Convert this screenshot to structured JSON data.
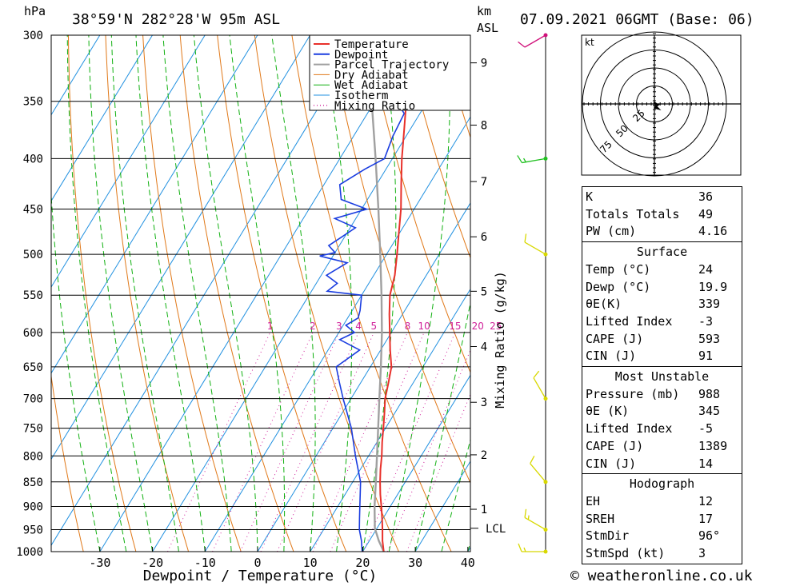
{
  "header": {
    "pressure_unit": "hPa",
    "location": "38°59'N  282°28'W  95m  ASL",
    "km_label": "km",
    "asl_label": "ASL",
    "datetime": "07.09.2021  06GMT  (Base: 06)"
  },
  "credit": "© weatheronline.co.uk",
  "colors": {
    "temperature": "#e8302a",
    "dewpoint": "#1a3de0",
    "parcel": "#a0a0a0",
    "dry_adiabat": "#e07818",
    "wet_adiabat": "#10b010",
    "isotherm": "#2090e0",
    "mixing_ratio": "#d0209a",
    "wind": "#d8d800"
  },
  "legend": [
    "Temperature",
    "Dewpoint",
    "Parcel Trajectory",
    "Dry Adiabat",
    "Wet Adiabat",
    "Isotherm",
    "Mixing Ratio"
  ],
  "hodograph": {
    "unit_label": "kt",
    "ring_labels": [
      "25",
      "50",
      "75"
    ]
  },
  "indices": {
    "top": [
      {
        "label": "K",
        "value": "36"
      },
      {
        "label": "Totals Totals",
        "value": "49"
      },
      {
        "label": "PW (cm)",
        "value": "4.16"
      }
    ],
    "surface": {
      "title": "Surface",
      "rows": [
        {
          "label": "Temp (°C)",
          "value": "24"
        },
        {
          "label": "Dewp (°C)",
          "value": "19.9"
        },
        {
          "label": "θE(K)",
          "value": "339"
        },
        {
          "label": "Lifted Index",
          "value": "-3"
        },
        {
          "label": "CAPE (J)",
          "value": "593"
        },
        {
          "label": "CIN (J)",
          "value": "91"
        }
      ]
    },
    "most_unstable": {
      "title": "Most Unstable",
      "rows": [
        {
          "label": "Pressure (mb)",
          "value": "988"
        },
        {
          "label": "θE (K)",
          "value": "345"
        },
        {
          "label": "Lifted Index",
          "value": "-5"
        },
        {
          "label": "CAPE (J)",
          "value": "1389"
        },
        {
          "label": "CIN (J)",
          "value": "14"
        }
      ]
    },
    "hodograph": {
      "title": "Hodograph",
      "rows": [
        {
          "label": "EH",
          "value": "12"
        },
        {
          "label": "SREH",
          "value": "17"
        },
        {
          "label": "StmDir",
          "value": "96°"
        },
        {
          "label": "StmSpd (kt)",
          "value": "3"
        }
      ]
    }
  },
  "chart_data": {
    "type": "line",
    "title": "38°59'N  282°28'W  95m  ASL",
    "xlabel": "Dewpoint / Temperature (°C)",
    "ylabel": "hPa",
    "y2label": "Mixing Ratio (g/kg)",
    "pressure_ticks": [
      300,
      350,
      400,
      450,
      500,
      550,
      600,
      650,
      700,
      750,
      800,
      850,
      900,
      950,
      1000
    ],
    "temperature_ticks": [
      -30,
      -20,
      -10,
      0,
      10,
      20,
      30,
      40
    ],
    "km_ticks": [
      {
        "km": "1",
        "p": 906
      },
      {
        "km": "2",
        "p": 798
      },
      {
        "km": "3",
        "p": 706
      },
      {
        "km": "4",
        "p": 620
      },
      {
        "km": "5",
        "p": 545
      },
      {
        "km": "6",
        "p": 480
      },
      {
        "km": "7",
        "p": 422
      },
      {
        "km": "8",
        "p": 370
      },
      {
        "km": "9",
        "p": 320
      }
    ],
    "lcl": {
      "label": "LCL",
      "p": 947
    },
    "mixing_ratio_labels": [
      "1",
      "2",
      "3",
      "4",
      "5",
      "8",
      "10",
      "15",
      "20",
      "25"
    ],
    "series": [
      {
        "name": "Temperature",
        "points": [
          [
            1000,
            24.0
          ],
          [
            975,
            22.5
          ],
          [
            950,
            21.2
          ],
          [
            925,
            19.8
          ],
          [
            900,
            18.3
          ],
          [
            875,
            16.7
          ],
          [
            850,
            15.2
          ],
          [
            825,
            13.8
          ],
          [
            800,
            12.5
          ],
          [
            775,
            11.0
          ],
          [
            750,
            9.6
          ],
          [
            725,
            8.1
          ],
          [
            700,
            6.5
          ],
          [
            675,
            5.3
          ],
          [
            650,
            4.0
          ],
          [
            625,
            1.8
          ],
          [
            600,
            -0.3
          ],
          [
            575,
            -2.5
          ],
          [
            550,
            -4.6
          ],
          [
            525,
            -6.0
          ],
          [
            500,
            -8.0
          ],
          [
            475,
            -10.2
          ],
          [
            450,
            -12.5
          ],
          [
            425,
            -15.3
          ],
          [
            400,
            -18.2
          ],
          [
            375,
            -21.0
          ],
          [
            350,
            -24.0
          ],
          [
            325,
            -27.0
          ],
          [
            300,
            -30.5
          ]
        ]
      },
      {
        "name": "Dewpoint",
        "points": [
          [
            1000,
            19.9
          ],
          [
            975,
            18.5
          ],
          [
            950,
            16.8
          ],
          [
            925,
            15.5
          ],
          [
            900,
            14.2
          ],
          [
            850,
            11.5
          ],
          [
            800,
            7.5
          ],
          [
            750,
            3.5
          ],
          [
            700,
            -1.5
          ],
          [
            675,
            -4.0
          ],
          [
            650,
            -6.5
          ],
          [
            625,
            -4.0
          ],
          [
            610,
            -9.0
          ],
          [
            600,
            -7.0
          ],
          [
            590,
            -9.5
          ],
          [
            580,
            -8.0
          ],
          [
            570,
            -8.5
          ],
          [
            550,
            -10.0
          ],
          [
            545,
            -17.0
          ],
          [
            535,
            -16.0
          ],
          [
            525,
            -19.0
          ],
          [
            510,
            -16.5
          ],
          [
            502,
            -22.5
          ],
          [
            498,
            -20.0
          ],
          [
            490,
            -22.0
          ],
          [
            480,
            -20.5
          ],
          [
            470,
            -19.0
          ],
          [
            460,
            -24.0
          ],
          [
            450,
            -19.0
          ],
          [
            440,
            -25.0
          ],
          [
            425,
            -27.0
          ],
          [
            410,
            -24.0
          ],
          [
            400,
            -21.5
          ],
          [
            380,
            -22.5
          ],
          [
            360,
            -23.0
          ],
          [
            350,
            -26.0
          ],
          [
            330,
            -31.5
          ],
          [
            315,
            -28.0
          ],
          [
            300,
            -39.0
          ]
        ]
      },
      {
        "name": "Parcel Trajectory",
        "points": [
          [
            1000,
            24.0
          ],
          [
            975,
            21.8
          ],
          [
            947,
            19.6
          ],
          [
            925,
            18.4
          ],
          [
            900,
            17.0
          ],
          [
            850,
            14.4
          ],
          [
            800,
            11.6
          ],
          [
            750,
            8.6
          ],
          [
            700,
            5.4
          ],
          [
            650,
            2.0
          ],
          [
            600,
            -1.8
          ],
          [
            550,
            -6.2
          ],
          [
            500,
            -11.2
          ],
          [
            450,
            -16.8
          ],
          [
            400,
            -23.2
          ],
          [
            350,
            -30.6
          ],
          [
            300,
            -39.0
          ]
        ]
      }
    ],
    "wind_barbs": [
      {
        "p": 1000,
        "dir": 270,
        "kt": 15
      },
      {
        "p": 950,
        "dir": 300,
        "kt": 15
      },
      {
        "p": 850,
        "dir": 320,
        "kt": 10
      },
      {
        "p": 700,
        "dir": 330,
        "kt": 10
      },
      {
        "p": 500,
        "dir": 300,
        "kt": 10
      },
      {
        "p": 400,
        "dir": 260,
        "kt": 15
      },
      {
        "p": 300,
        "dir": 240,
        "kt": 10
      }
    ]
  }
}
